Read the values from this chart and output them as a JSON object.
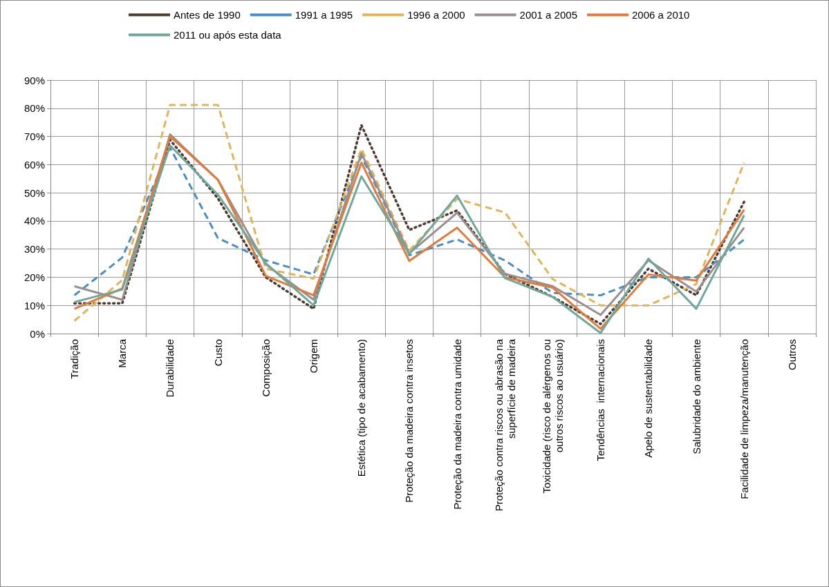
{
  "chart_data": {
    "type": "line",
    "categories": [
      "Tradição",
      "Marca",
      "Durabilidade",
      "Custo",
      "Composição",
      "Origem",
      "Estética (tipo de acabamento)",
      "Proteção da madeira contra insetos",
      "Proteção da madeira contra umidade",
      "Proteção contra riscos ou abrasão na\nsuperfície de madeira",
      "Toxicidade (risco de alérgenos ou\noutros riscos ao usuário)",
      "Tendências  internacionais",
      "Apelo de sustentabilidade",
      "Salubridade do ambiente",
      "Facilidade de limpeza/manutenção",
      "Outros"
    ],
    "series": [
      {
        "name": "Antes de 1990",
        "color": "#4f3a30",
        "line_style": "dotted",
        "values": [
          10.7,
          10.7,
          68.8,
          48,
          20,
          8.8,
          74,
          36.8,
          43.7,
          21.2,
          13,
          3.4,
          23,
          13.6,
          46.8,
          null
        ]
      },
      {
        "name": "1991 a 1995",
        "color": "#4a8cc4",
        "line_style": "dashed",
        "values": [
          13.6,
          27,
          66,
          33.9,
          26,
          21,
          63,
          27.8,
          33.4,
          26,
          14.4,
          13.6,
          20,
          20,
          33.4,
          null
        ]
      },
      {
        "name": "1996 a 2000",
        "color": "#e0b55a",
        "line_style": "dashed",
        "values": [
          4.5,
          19,
          81.2,
          81.2,
          23,
          19.5,
          65.6,
          29.5,
          47.8,
          43,
          19.3,
          10,
          10,
          17.6,
          60.7,
          null
        ]
      },
      {
        "name": "2001 a 2005",
        "color": "#9a8e8e",
        "line_style": "solid",
        "values": [
          16.8,
          12,
          70.7,
          54.6,
          24.6,
          12,
          64,
          28.5,
          42.9,
          21.2,
          16.8,
          6.6,
          26,
          14.9,
          37.6,
          null
        ]
      },
      {
        "name": "2006 a 2010",
        "color": "#e07b3c",
        "line_style": "solid",
        "values": [
          8.8,
          16,
          70,
          54.6,
          20.5,
          13.6,
          60.7,
          25.8,
          37.6,
          20,
          16.3,
          1.7,
          21,
          18.8,
          44,
          null
        ]
      },
      {
        "name": "2011 ou após esta data",
        "color": "#6fa89a",
        "line_style": "solid",
        "values": [
          11.2,
          15.6,
          66.8,
          49.3,
          25,
          10,
          55.8,
          28.3,
          49,
          19.7,
          13,
          0.2,
          26.6,
          8.8,
          42,
          null
        ]
      }
    ],
    "ylim": [
      0,
      90
    ],
    "yticks": [
      {
        "value": 0,
        "label": "0%"
      },
      {
        "value": 10,
        "label": "10%"
      },
      {
        "value": 20,
        "label": "20%"
      },
      {
        "value": 30,
        "label": "30%"
      },
      {
        "value": 40,
        "label": "40%"
      },
      {
        "value": 50,
        "label": "50%"
      },
      {
        "value": 60,
        "label": "60%"
      },
      {
        "value": 70,
        "label": "70%"
      },
      {
        "value": 80,
        "label": "80%"
      },
      {
        "value": 90,
        "label": "90%"
      }
    ],
    "grid": true,
    "legend": "top",
    "marker": "none"
  }
}
